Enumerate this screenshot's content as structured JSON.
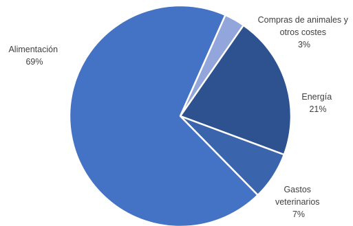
{
  "chart_data": {
    "type": "pie",
    "start_angle_deg": 24,
    "direction": "clockwise",
    "slices": [
      {
        "name": "Compras de animales y otros costes",
        "label_lines": [
          "Compras de animales y",
          "otros costes"
        ],
        "value": 3,
        "value_label": "3%",
        "color": "#92a6dc"
      },
      {
        "name": "Energía",
        "label_lines": [
          "Energía"
        ],
        "value": 21,
        "value_label": "21%",
        "color": "#2e528f"
      },
      {
        "name": "Gastos veterinarios",
        "label_lines": [
          "Gastos",
          "veterinarios"
        ],
        "value": 7,
        "value_label": "7%",
        "color": "#3a65ad"
      },
      {
        "name": "Alimentación",
        "label_lines": [
          "Alimentación"
        ],
        "value": 69,
        "value_label": "69%",
        "color": "#4472c4"
      }
    ]
  }
}
